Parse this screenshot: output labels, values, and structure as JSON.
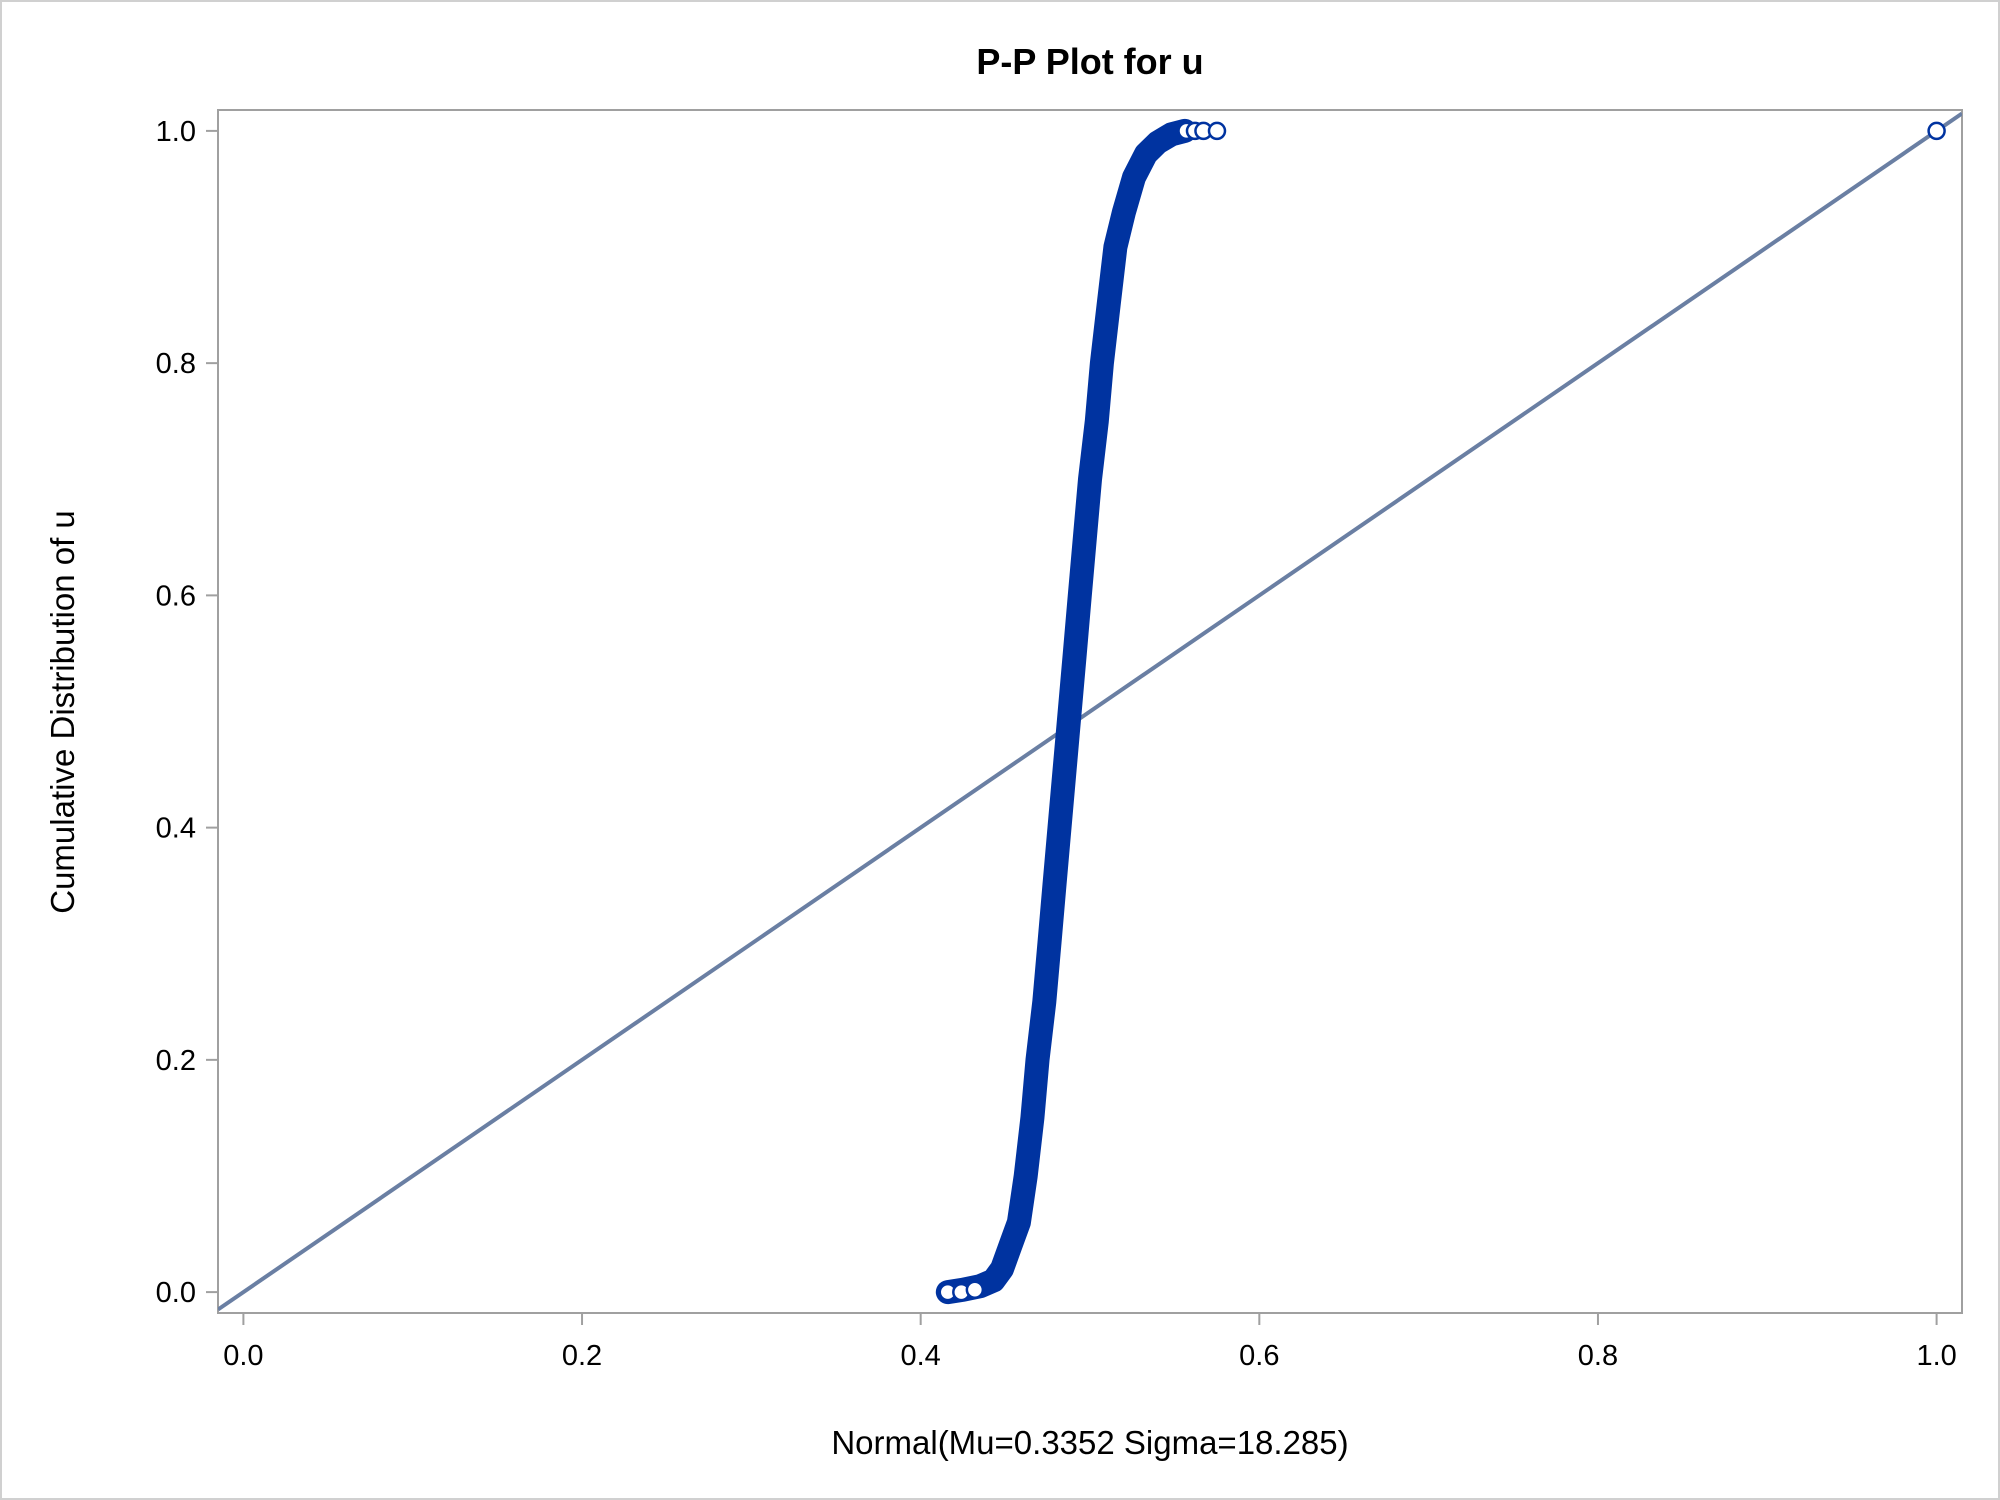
{
  "chart_data": {
    "type": "scatter",
    "title": "P-P Plot for u",
    "xlabel": "Normal(Mu=0.3352 Sigma=18.285)",
    "ylabel": "Cumulative Distribution of u",
    "xlim": [
      -0.015,
      1.015
    ],
    "ylim": [
      -0.018,
      1.018
    ],
    "xticks": [
      0.0,
      0.2,
      0.4,
      0.6,
      0.8,
      1.0
    ],
    "yticks": [
      0.0,
      0.2,
      0.4,
      0.6,
      0.8,
      1.0
    ],
    "xtick_labels": [
      "0.0",
      "0.2",
      "0.4",
      "0.6",
      "0.8",
      "1.0"
    ],
    "ytick_labels": [
      "0.0",
      "0.2",
      "0.4",
      "0.6",
      "0.8",
      "1.0"
    ],
    "grid": false,
    "legend": "none",
    "marker_color": "#0033a0",
    "reference_line_color": "#6a7fa3",
    "reference_line": {
      "name": "",
      "x": [
        -0.015,
        1.015
      ],
      "y": [
        -0.015,
        1.015
      ]
    },
    "series": [
      {
        "name": "",
        "curve": [
          [
            0.416,
            0.0
          ],
          [
            0.425,
            0.002
          ],
          [
            0.435,
            0.005
          ],
          [
            0.443,
            0.01
          ],
          [
            0.448,
            0.02
          ],
          [
            0.453,
            0.04
          ],
          [
            0.458,
            0.06
          ],
          [
            0.462,
            0.1
          ],
          [
            0.466,
            0.15
          ],
          [
            0.469,
            0.2
          ],
          [
            0.473,
            0.25
          ],
          [
            0.476,
            0.3
          ],
          [
            0.479,
            0.35
          ],
          [
            0.482,
            0.4
          ],
          [
            0.485,
            0.45
          ],
          [
            0.488,
            0.5
          ],
          [
            0.491,
            0.55
          ],
          [
            0.494,
            0.6
          ],
          [
            0.497,
            0.65
          ],
          [
            0.5,
            0.7
          ],
          [
            0.504,
            0.75
          ],
          [
            0.507,
            0.8
          ],
          [
            0.511,
            0.85
          ],
          [
            0.515,
            0.9
          ],
          [
            0.52,
            0.93
          ],
          [
            0.526,
            0.96
          ],
          [
            0.533,
            0.98
          ],
          [
            0.54,
            0.99
          ],
          [
            0.548,
            0.997
          ],
          [
            0.556,
            1.0
          ]
        ],
        "points": [
          [
            0.416,
            0.0
          ],
          [
            0.424,
            0.0
          ],
          [
            0.432,
            0.002
          ],
          [
            0.557,
            1.0
          ],
          [
            0.562,
            1.0
          ],
          [
            0.567,
            1.0
          ],
          [
            0.575,
            1.0
          ],
          [
            1.0,
            1.0
          ]
        ]
      }
    ]
  }
}
